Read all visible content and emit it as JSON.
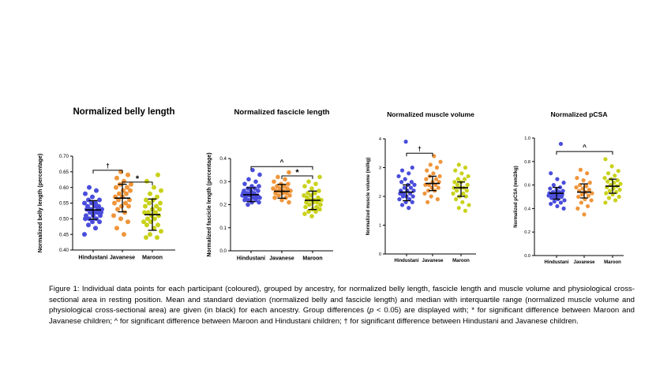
{
  "colors": {
    "Hindustani": "#4a4ddc",
    "Javanese": "#f0953a",
    "Maroon": "#c9d21a",
    "bars": "#000000"
  },
  "chart_data": [
    {
      "type": "scatter",
      "title": "Normalized belly length",
      "ylabel": "Normalized belly length  (percentage)",
      "categories": [
        "Hindustani",
        "Javanese",
        "Maroon"
      ],
      "ylim": [
        0.4,
        0.7
      ],
      "yticks": [
        "0.40",
        "0.45",
        "0.50",
        "0.55",
        "0.60",
        "0.65",
        "0.70"
      ],
      "grid": false,
      "series": [
        {
          "name": "Hindustani",
          "center": 0.528,
          "lower": 0.498,
          "upper": 0.558,
          "values": [
            0.45,
            0.47,
            0.48,
            0.49,
            0.49,
            0.5,
            0.5,
            0.5,
            0.51,
            0.51,
            0.51,
            0.52,
            0.52,
            0.52,
            0.52,
            0.53,
            0.53,
            0.53,
            0.53,
            0.54,
            0.54,
            0.54,
            0.55,
            0.55,
            0.55,
            0.56,
            0.56,
            0.57,
            0.58,
            0.59,
            0.6
          ]
        },
        {
          "name": "Javanese",
          "center": 0.566,
          "lower": 0.522,
          "upper": 0.61,
          "values": [
            0.45,
            0.47,
            0.49,
            0.5,
            0.51,
            0.52,
            0.53,
            0.54,
            0.54,
            0.55,
            0.55,
            0.56,
            0.56,
            0.57,
            0.57,
            0.58,
            0.58,
            0.59,
            0.59,
            0.6,
            0.6,
            0.61,
            0.61,
            0.62,
            0.63,
            0.64,
            0.65
          ]
        },
        {
          "name": "Maroon",
          "center": 0.513,
          "lower": 0.463,
          "upper": 0.563,
          "values": [
            0.44,
            0.44,
            0.45,
            0.46,
            0.47,
            0.48,
            0.48,
            0.49,
            0.49,
            0.5,
            0.5,
            0.51,
            0.51,
            0.52,
            0.52,
            0.52,
            0.53,
            0.53,
            0.54,
            0.54,
            0.55,
            0.55,
            0.56,
            0.56,
            0.57,
            0.58,
            0.59,
            0.6,
            0.62,
            0.64
          ]
        }
      ],
      "annotations": [
        {
          "from": 0,
          "to": 1,
          "y": 0.655,
          "label": "†"
        },
        {
          "from": 1,
          "to": 2,
          "y": 0.617,
          "label": "*"
        }
      ]
    },
    {
      "type": "scatter",
      "title": "Normalized fascicle length",
      "ylabel": "Normalized fascicle length  (percentage)",
      "categories": [
        "Hindustani",
        "Javanese",
        "Maroon"
      ],
      "ylim": [
        0.0,
        0.4
      ],
      "yticks": [
        "0.0",
        "0.1",
        "0.2",
        "0.3",
        "0.4"
      ],
      "grid": false,
      "series": [
        {
          "name": "Hindustani",
          "center": 0.243,
          "lower": 0.213,
          "upper": 0.273,
          "values": [
            0.2,
            0.21,
            0.21,
            0.22,
            0.22,
            0.22,
            0.23,
            0.23,
            0.23,
            0.23,
            0.24,
            0.24,
            0.24,
            0.24,
            0.24,
            0.25,
            0.25,
            0.25,
            0.25,
            0.26,
            0.26,
            0.26,
            0.27,
            0.27,
            0.28,
            0.28,
            0.29,
            0.3,
            0.31,
            0.33,
            0.35
          ]
        },
        {
          "name": "Javanese",
          "center": 0.258,
          "lower": 0.228,
          "upper": 0.288,
          "values": [
            0.21,
            0.22,
            0.23,
            0.23,
            0.24,
            0.24,
            0.25,
            0.25,
            0.25,
            0.26,
            0.26,
            0.26,
            0.26,
            0.27,
            0.27,
            0.27,
            0.28,
            0.28,
            0.29,
            0.29,
            0.3,
            0.31,
            0.32,
            0.34
          ]
        },
        {
          "name": "Maroon",
          "center": 0.219,
          "lower": 0.179,
          "upper": 0.259,
          "values": [
            0.15,
            0.16,
            0.17,
            0.17,
            0.18,
            0.18,
            0.19,
            0.19,
            0.2,
            0.2,
            0.21,
            0.21,
            0.21,
            0.22,
            0.22,
            0.22,
            0.23,
            0.23,
            0.24,
            0.24,
            0.25,
            0.25,
            0.26,
            0.27,
            0.28,
            0.29,
            0.3,
            0.32
          ]
        }
      ],
      "annotations": [
        {
          "from": 0,
          "to": 2,
          "y": 0.365,
          "label": "^"
        },
        {
          "from": 1,
          "to": 2,
          "y": 0.325,
          "label": "*"
        }
      ]
    },
    {
      "type": "scatter",
      "title": "Normalized muscle volume",
      "ylabel": "Normalized muscle volume  (ml/kg)",
      "categories": [
        "Hindustani",
        "Javanese",
        "Maroon"
      ],
      "ylim": [
        0,
        4
      ],
      "yticks": [
        "0",
        "1",
        "2",
        "3",
        "4"
      ],
      "grid": false,
      "series": [
        {
          "name": "Hindustani",
          "center": 2.15,
          "lower": 1.85,
          "upper": 2.4,
          "values": [
            1.6,
            1.7,
            1.8,
            1.8,
            1.9,
            1.9,
            2.0,
            2.0,
            2.0,
            2.1,
            2.1,
            2.1,
            2.2,
            2.2,
            2.2,
            2.3,
            2.3,
            2.4,
            2.4,
            2.5,
            2.5,
            2.6,
            2.7,
            2.8,
            2.9,
            3.0,
            3.9
          ]
        },
        {
          "name": "Javanese",
          "center": 2.45,
          "lower": 2.2,
          "upper": 2.7,
          "values": [
            1.8,
            1.9,
            2.0,
            2.1,
            2.2,
            2.2,
            2.3,
            2.3,
            2.4,
            2.4,
            2.4,
            2.5,
            2.5,
            2.6,
            2.6,
            2.7,
            2.7,
            2.8,
            2.9,
            3.0,
            3.1,
            3.2,
            3.4
          ]
        },
        {
          "name": "Maroon",
          "center": 2.3,
          "lower": 2.0,
          "upper": 2.5,
          "values": [
            1.5,
            1.6,
            1.7,
            1.8,
            1.9,
            2.0,
            2.0,
            2.1,
            2.1,
            2.2,
            2.2,
            2.3,
            2.3,
            2.3,
            2.4,
            2.4,
            2.5,
            2.5,
            2.6,
            2.6,
            2.7,
            2.8,
            2.9,
            3.0,
            3.1
          ]
        }
      ],
      "annotations": [
        {
          "from": 0,
          "to": 1,
          "y": 3.5,
          "label": "†"
        }
      ]
    },
    {
      "type": "scatter",
      "title": "Normalized pCSA",
      "ylabel": "Normalized pCSA  (mm2/kg)",
      "categories": [
        "Hindustani",
        "Javanese",
        "Maroon"
      ],
      "ylim": [
        0.0,
        1.0
      ],
      "yticks": [
        "0.0",
        "0.2",
        "0.4",
        "0.6",
        "0.8",
        "1.0"
      ],
      "grid": false,
      "series": [
        {
          "name": "Hindustani",
          "center": 0.53,
          "lower": 0.48,
          "upper": 0.58,
          "values": [
            0.4,
            0.42,
            0.44,
            0.45,
            0.46,
            0.47,
            0.48,
            0.49,
            0.5,
            0.5,
            0.51,
            0.51,
            0.52,
            0.52,
            0.53,
            0.53,
            0.54,
            0.54,
            0.55,
            0.56,
            0.57,
            0.58,
            0.6,
            0.62,
            0.65,
            0.7,
            0.95
          ]
        },
        {
          "name": "Javanese",
          "center": 0.54,
          "lower": 0.49,
          "upper": 0.61,
          "values": [
            0.35,
            0.4,
            0.42,
            0.45,
            0.47,
            0.48,
            0.5,
            0.51,
            0.52,
            0.53,
            0.54,
            0.55,
            0.56,
            0.57,
            0.58,
            0.59,
            0.6,
            0.62,
            0.64,
            0.66,
            0.7,
            0.73
          ]
        },
        {
          "name": "Maroon",
          "center": 0.59,
          "lower": 0.53,
          "upper": 0.65,
          "values": [
            0.45,
            0.47,
            0.49,
            0.5,
            0.52,
            0.53,
            0.54,
            0.55,
            0.56,
            0.57,
            0.58,
            0.59,
            0.6,
            0.61,
            0.62,
            0.63,
            0.64,
            0.65,
            0.66,
            0.68,
            0.7,
            0.72,
            0.76,
            0.82
          ]
        }
      ],
      "annotations": [
        {
          "from": 0,
          "to": 2,
          "y": 0.885,
          "label": "^"
        }
      ]
    }
  ],
  "caption": {
    "part1": "Figure 1: Individual data points for each participant (coloured), grouped by ancestry, for normalized belly length, fascicle length and muscle volume and physiological cross-sectional area in resting position. Mean and standard deviation (normalized belly and fascicle length) and median with interquartile range (normalized muscle volume and physiological cross-sectional area) are given (in black) for each ancestry. Group differences (",
    "p_symbol": "p",
    "part2": " < 0.05) are displayed with; * for significant difference between Maroon and Javanese children; ^ for significant difference between Maroon and Hindustani children; † for significant difference between Hindustani and Javanese children."
  }
}
